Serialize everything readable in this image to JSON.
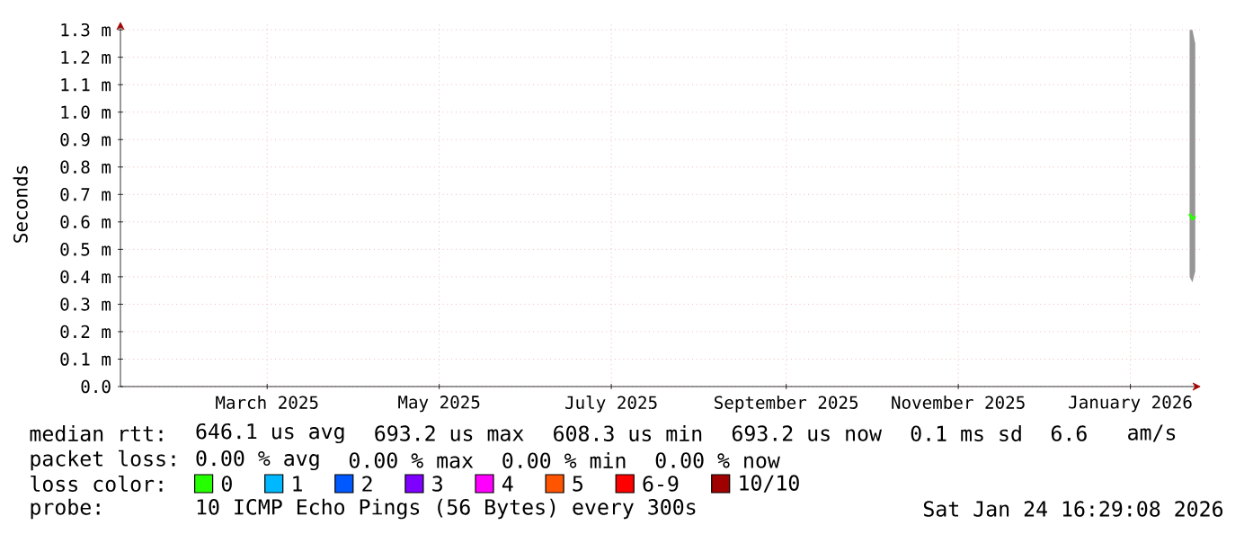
{
  "chart_data": {
    "type": "line",
    "ylabel": "Seconds",
    "x": [
      "2026-01-22",
      "2026-01-23",
      "2026-01-24"
    ],
    "series": [
      {
        "name": "0",
        "color": "#26ff00",
        "values": [
          0.63,
          0.61,
          0.62
        ],
        "lower": [
          0.4,
          0.38,
          0.42
        ],
        "upper": [
          1.3,
          1.3,
          1.25
        ]
      },
      {
        "name": "1",
        "color": "#00b8ff",
        "values": [
          null,
          null,
          null
        ]
      },
      {
        "name": "2",
        "color": "#0059ff",
        "values": [
          null,
          null,
          null
        ]
      },
      {
        "name": "3",
        "color": "#7e00ff",
        "values": [
          null,
          null,
          null
        ]
      },
      {
        "name": "4",
        "color": "#ff00ff",
        "values": [
          null,
          null,
          null
        ]
      },
      {
        "name": "5",
        "color": "#ff5500",
        "values": [
          null,
          null,
          null
        ]
      },
      {
        "name": "6-9",
        "color": "#ff0000",
        "values": [
          null,
          null,
          null
        ]
      },
      {
        "name": "10/10",
        "color": "#a10000",
        "values": [
          null,
          null,
          null
        ]
      }
    ],
    "xlim": [
      "2025-01-08",
      "2026-01-26"
    ],
    "xticks": [
      {
        "value": "2025-03-01",
        "label": "March 2025"
      },
      {
        "value": "2025-05-01",
        "label": "May 2025"
      },
      {
        "value": "2025-07-01",
        "label": "July 2025"
      },
      {
        "value": "2025-09-01",
        "label": "September 2025"
      },
      {
        "value": "2025-11-01",
        "label": "November 2025"
      },
      {
        "value": "2026-01-01",
        "label": "January 2026"
      }
    ],
    "ylim": [
      0,
      1.33
    ],
    "yticks": [
      {
        "value": 0,
        "label": "0.0"
      },
      {
        "value": 0.1,
        "label": "0.1 m"
      },
      {
        "value": 0.2,
        "label": "0.2 m"
      },
      {
        "value": 0.3,
        "label": "0.3 m"
      },
      {
        "value": 0.4,
        "label": "0.4 m"
      },
      {
        "value": 0.5,
        "label": "0.5 m"
      },
      {
        "value": 0.6,
        "label": "0.6 m"
      },
      {
        "value": 0.7,
        "label": "0.7 m"
      },
      {
        "value": 0.8,
        "label": "0.8 m"
      },
      {
        "value": 0.9,
        "label": "0.9 m"
      },
      {
        "value": 1.0,
        "label": "1.0 m"
      },
      {
        "value": 1.1,
        "label": "1.1 m"
      },
      {
        "value": 1.2,
        "label": "1.2 m"
      },
      {
        "value": 1.3,
        "label": "1.3 m"
      }
    ],
    "grid": true,
    "legend": "bottom",
    "legend_title": "loss color:",
    "annotations": [
      "median rtt:",
      "646.1 us avg",
      "693.2 us max",
      "608.3 us min",
      "693.2 us now",
      "0.1 ms sd",
      "6.6",
      "am/s",
      "packet loss:",
      "0.00 % avg",
      "0.00 % max",
      "0.00 % min",
      "0.00 % now",
      "probe:",
      "10 ICMP Echo Pings (56 Bytes) every 300s",
      "Sat Jan 24 16:29:08 2026"
    ]
  }
}
